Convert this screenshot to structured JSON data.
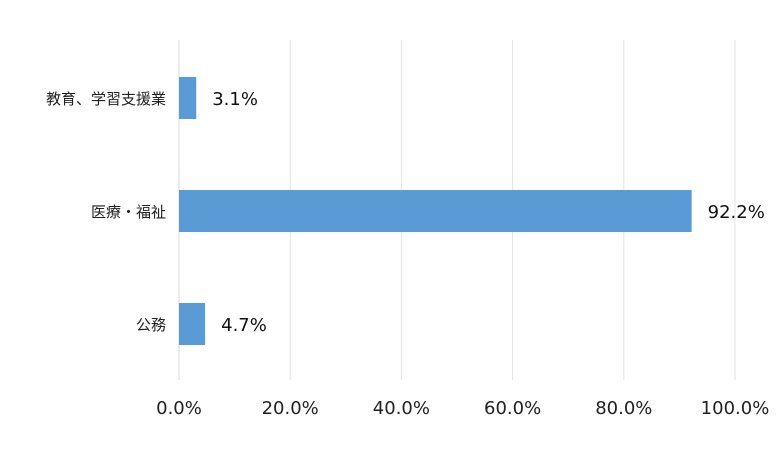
{
  "chart_data": {
    "type": "bar",
    "orientation": "horizontal",
    "categories": [
      "教育、学習支援業",
      "医療・福祉",
      "公務"
    ],
    "values": [
      3.1,
      92.2,
      4.7
    ],
    "data_labels": [
      "3.1%",
      "92.2%",
      "4.7%"
    ],
    "xlim": [
      0,
      100
    ],
    "x_ticks": [
      0,
      20,
      40,
      60,
      80,
      100
    ],
    "x_tick_labels": [
      "0.0%",
      "20.0%",
      "40.0%",
      "60.0%",
      "80.0%",
      "100.0%"
    ],
    "bar_color": "#5b9bd5",
    "grid": true,
    "legend": "none"
  }
}
